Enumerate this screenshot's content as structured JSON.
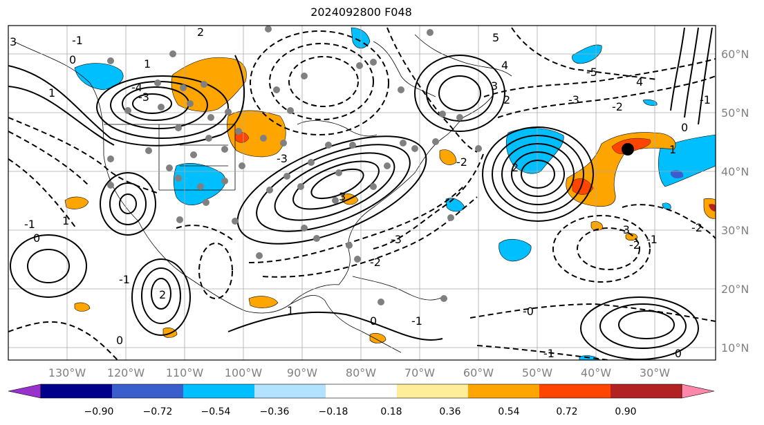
{
  "title": "2024092800 F048",
  "longitude_labels": [
    "130°W",
    "120°W",
    "110°W",
    "100°W",
    "90°W",
    "80°W",
    "70°W",
    "60°W",
    "50°W",
    "40°W",
    "30°W"
  ],
  "latitude_labels": [
    "60°N",
    "50°N",
    "40°N",
    "30°N",
    "20°N",
    "10°N"
  ],
  "contour_labels": [
    "3",
    "2",
    "1",
    "-1",
    "0",
    "1",
    "-4",
    "-3",
    "-5",
    "4",
    "3",
    "5",
    "2",
    "-2",
    "1",
    "4",
    "-1",
    "-3",
    "-2",
    "-3",
    "-1",
    "1",
    "0",
    "-2",
    "-1",
    "-1",
    "-0",
    "0",
    "-1",
    "-0",
    "-3",
    "-3",
    "-2",
    "-2",
    "2",
    "1",
    "-1",
    "0",
    "3",
    "2",
    "0"
  ],
  "colorbar": {
    "tick_labels": [
      "−0.90",
      "−0.72",
      "−0.54",
      "−0.36",
      "−0.18",
      "0.18",
      "0.36",
      "0.54",
      "0.72",
      "0.90"
    ],
    "colors": [
      "#9932cc",
      "#00008b",
      "#3a5fcd",
      "#00bfff",
      "#b2e2ff",
      "#ffffff",
      "#ffee99",
      "#ffa500",
      "#ff4500",
      "#b22222",
      "#ff88aa"
    ]
  },
  "colors": {
    "blue_fill": "#00bfff",
    "orange_fill": "#ffa500",
    "red_fill": "#ff4500",
    "station_gray": "#808080"
  }
}
